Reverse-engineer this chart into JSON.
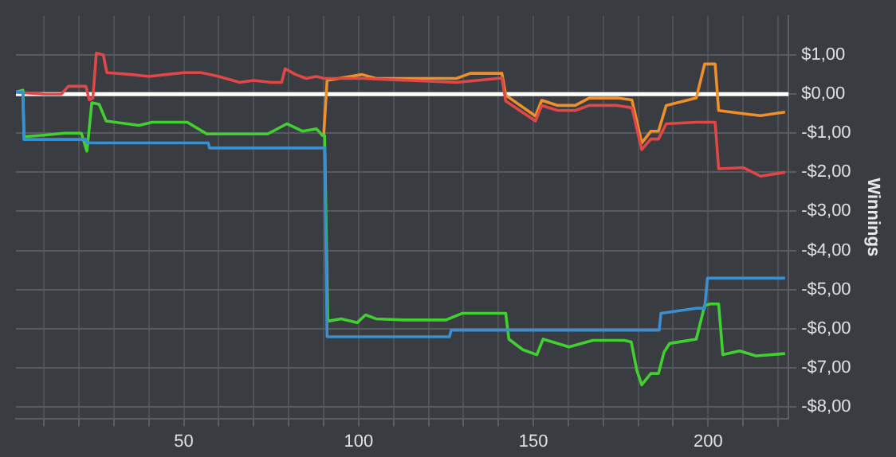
{
  "chart_data": {
    "type": "line",
    "ylabel": "Winnings",
    "grid": true,
    "legend": false,
    "marker": "none",
    "line_style": "solid",
    "xlim": [
      2,
      223
    ],
    "xticks": [
      {
        "value": 10,
        "label": null
      },
      {
        "value": 20,
        "label": null
      },
      {
        "value": 30,
        "label": null
      },
      {
        "value": 40,
        "label": null
      },
      50,
      {
        "value": 60,
        "label": null
      },
      {
        "value": 70,
        "label": null
      },
      {
        "value": 80,
        "label": null
      },
      {
        "value": 90,
        "label": null
      },
      100,
      {
        "value": 110,
        "label": null
      },
      {
        "value": 120,
        "label": null
      },
      {
        "value": 130,
        "label": null
      },
      {
        "value": 140,
        "label": null
      },
      150,
      {
        "value": 160,
        "label": null
      },
      {
        "value": 170,
        "label": null
      },
      {
        "value": 180,
        "label": null
      },
      {
        "value": 190,
        "label": null
      },
      200,
      {
        "value": 210,
        "label": null
      },
      {
        "value": 220,
        "label": null
      }
    ],
    "ylim": [
      -8.3,
      2
    ],
    "yticks": [
      {
        "value": -8,
        "label": "-$8,00"
      },
      {
        "value": -7,
        "label": "-$7,00"
      },
      {
        "value": -6,
        "label": "-$6,00"
      },
      {
        "value": -5,
        "label": "-$5,00"
      },
      {
        "value": -4,
        "label": "-$4,00"
      },
      {
        "value": -3,
        "label": "-$3,00"
      },
      {
        "value": -2,
        "label": "-$2,00"
      },
      {
        "value": -1,
        "label": "-$1,00"
      },
      {
        "value": 0,
        "label": "$0,00"
      },
      {
        "value": 1,
        "label": "$1,00"
      }
    ],
    "ref_lines": [
      {
        "axis": "y",
        "value": 0,
        "color": "#ffffff"
      }
    ],
    "series": [
      {
        "color": "#3a8fd0",
        "x": [
          2,
          4,
          4.3,
          22,
          22.3,
          57,
          57.4,
          90.3,
          91,
          126,
          126.5,
          186,
          186.5,
          196.6,
          199,
          199.8,
          222
        ],
        "values": [
          0.05,
          0.05,
          -1.16,
          -1.16,
          -1.25,
          -1.25,
          -1.38,
          -1.38,
          -6.21,
          -6.21,
          -6.04,
          -6.04,
          -5.61,
          -5.48,
          -5.48,
          -4.71,
          -4.71
        ]
      },
      {
        "color": "#40d030",
        "x": [
          2,
          4,
          4.3,
          10,
          16,
          20.7,
          22.3,
          23.7,
          25.8,
          27.8,
          37.2,
          41,
          51,
          56.6,
          63,
          74,
          79.5,
          84,
          88,
          89.7,
          90.3,
          91.2,
          95,
          99.6,
          102,
          105,
          113,
          125,
          129.6,
          142.1,
          143,
          147,
          151,
          152.8,
          160.2,
          167,
          176,
          178,
          179.6,
          181,
          183.6,
          185.8,
          187.4,
          189,
          196.6,
          199,
          200.6,
          203,
          204.2,
          209,
          213.7,
          222
        ],
        "values": [
          0.05,
          0.1,
          -1.09,
          -1.05,
          -1.0,
          -1.0,
          -1.46,
          -0.22,
          -0.26,
          -0.69,
          -0.8,
          -0.72,
          -0.72,
          -1.02,
          -1.02,
          -1.02,
          -0.76,
          -0.95,
          -0.89,
          -1.06,
          -1.06,
          -5.81,
          -5.75,
          -5.85,
          -5.65,
          -5.75,
          -5.78,
          -5.78,
          -5.61,
          -5.61,
          -6.27,
          -6.54,
          -6.67,
          -6.27,
          -6.47,
          -6.3,
          -6.3,
          -6.34,
          -7.07,
          -7.44,
          -7.15,
          -7.15,
          -6.6,
          -6.38,
          -6.27,
          -5.41,
          -5.37,
          -5.37,
          -6.67,
          -6.57,
          -6.7,
          -6.64
        ]
      },
      {
        "color": "#e04848",
        "x": [
          2,
          10,
          15,
          17,
          22,
          23,
          24,
          25,
          27,
          28,
          35,
          40,
          45,
          50,
          55,
          60,
          62,
          66,
          70,
          75,
          78,
          79,
          82,
          85,
          88,
          90,
          101,
          128,
          141,
          142.1,
          150.6,
          152.4,
          157,
          162,
          166,
          174,
          178.2,
          181,
          183.6,
          185.8,
          188,
          196.6,
          199,
          202,
          203,
          210,
          215,
          222
        ],
        "values": [
          0.05,
          0.0,
          0.0,
          0.2,
          0.2,
          -0.15,
          -0.1,
          1.05,
          1.0,
          0.55,
          0.5,
          0.45,
          0.5,
          0.55,
          0.55,
          0.45,
          0.4,
          0.3,
          0.35,
          0.3,
          0.3,
          0.65,
          0.5,
          0.4,
          0.45,
          0.4,
          0.4,
          0.3,
          0.41,
          -0.18,
          -0.69,
          -0.29,
          -0.42,
          -0.42,
          -0.29,
          -0.29,
          -0.35,
          -1.42,
          -1.15,
          -1.15,
          -0.76,
          -0.72,
          -0.72,
          -0.72,
          -1.91,
          -1.88,
          -2.1,
          -2.0
        ]
      },
      {
        "color": "#f0902a",
        "x": [
          90,
          91,
          101,
          105,
          128,
          132,
          141,
          142.1,
          150.6,
          152.4,
          157,
          162,
          166,
          174,
          178.2,
          181,
          183.6,
          185.8,
          188,
          196.6,
          199,
          202,
          203,
          210,
          215,
          222
        ],
        "values": [
          -1.1,
          0.35,
          0.5,
          0.4,
          0.4,
          0.53,
          0.53,
          -0.03,
          -0.56,
          -0.16,
          -0.29,
          -0.29,
          -0.1,
          -0.1,
          -0.15,
          -1.25,
          -0.95,
          -0.95,
          -0.29,
          -0.1,
          0.77,
          0.77,
          -0.42,
          -0.5,
          -0.55,
          -0.46
        ]
      }
    ]
  }
}
